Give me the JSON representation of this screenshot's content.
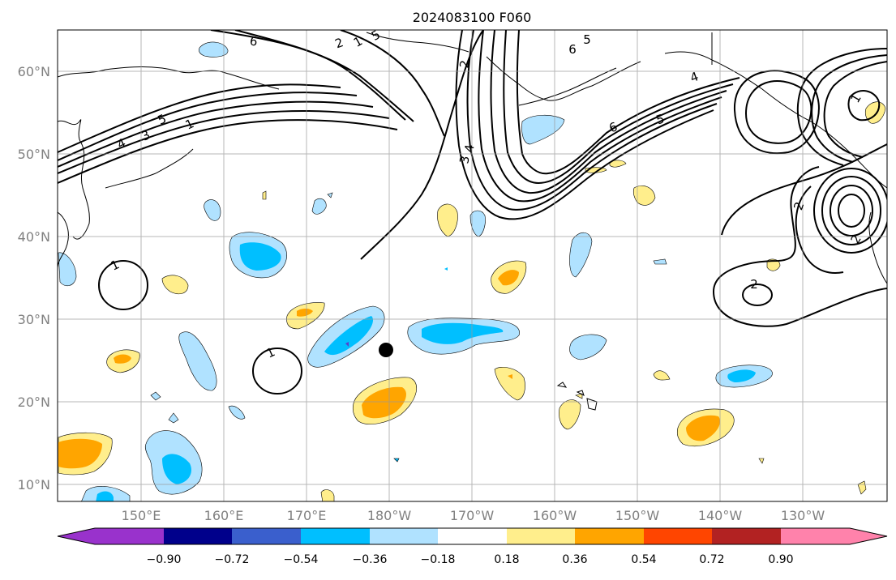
{
  "title": "2024083100 F060",
  "map": {
    "lat_ticks": [
      "60°N",
      "50°N",
      "40°N",
      "30°N",
      "20°N",
      "10°N"
    ],
    "lon_ticks": [
      "150°E",
      "160°E",
      "170°E",
      "180°W",
      "170°W",
      "160°W",
      "150°W",
      "140°W",
      "130°W"
    ],
    "extent": {
      "lon_min": 140,
      "lon_max": 240,
      "lat_min": 8,
      "lat_max": 65
    },
    "gridlines": true,
    "contour_color": "#000000",
    "contour_labels": [
      "6",
      "5",
      "4",
      "3",
      "2",
      "1",
      "1",
      "2",
      "5",
      "6",
      "5",
      "4",
      "3",
      "2",
      "1",
      "6",
      "5",
      "4",
      "2",
      "2",
      "1",
      "1"
    ],
    "marker": {
      "label": "storm-center",
      "lon": 180.3,
      "lat": 26.3,
      "color": "#000000"
    }
  },
  "colorbar": {
    "tick_labels": [
      "−0.90",
      "−0.72",
      "−0.54",
      "−0.36",
      "−0.18",
      "0.18",
      "0.36",
      "0.54",
      "0.72",
      "0.90"
    ],
    "colors": [
      "#9932cc",
      "#00008b",
      "#3a5fcd",
      "#00bfff",
      "#b0e2ff",
      "#ffffff",
      "#ffee8c",
      "#ffa500",
      "#ff4500",
      "#b22222",
      "#ff82ab"
    ]
  }
}
